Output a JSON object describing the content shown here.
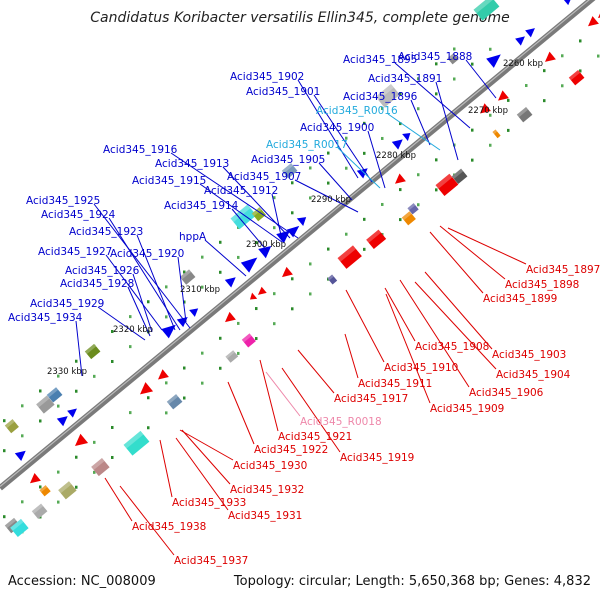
{
  "header": {
    "title": "Candidatus Koribacter versatilis Ellin345, complete genome"
  },
  "footer": {
    "accession": "Accession: NC_008009",
    "stats": "Topology: circular; Length: 5,650,368 bp; Genes: 4,832"
  },
  "colors": {
    "forward_label": "#0000cc",
    "reverse_label": "#dd0000",
    "forward_rna_label": "#22aadd",
    "reverse_rna_label": "#ee88aa",
    "backbone": "#888888",
    "forward_gene": "#0000ee",
    "reverse_gene": "#ee0000"
  },
  "ticks": [
    {
      "label": "2260 kbp"
    },
    {
      "label": "2270 kbp"
    },
    {
      "label": "2280 kbp"
    },
    {
      "label": "2290 kbp"
    },
    {
      "label": "2300 kbp"
    },
    {
      "label": "2310 kbp"
    },
    {
      "label": "2320 kbp"
    },
    {
      "label": "2330 kbp"
    }
  ],
  "forward_labels": [
    {
      "name": "Acid345_1888",
      "kind": "gene"
    },
    {
      "name": "Acid345_1895",
      "kind": "gene"
    },
    {
      "name": "Acid345_1891",
      "kind": "gene"
    },
    {
      "name": "Acid345_1902",
      "kind": "gene"
    },
    {
      "name": "Acid345_1901",
      "kind": "gene"
    },
    {
      "name": "Acid345_1896",
      "kind": "gene"
    },
    {
      "name": "Acid345_R0016",
      "kind": "rna"
    },
    {
      "name": "Acid345_1900",
      "kind": "gene"
    },
    {
      "name": "Acid345_R0017",
      "kind": "rna"
    },
    {
      "name": "Acid345_1916",
      "kind": "gene"
    },
    {
      "name": "Acid345_1905",
      "kind": "gene"
    },
    {
      "name": "Acid345_1913",
      "kind": "gene"
    },
    {
      "name": "Acid345_1907",
      "kind": "gene"
    },
    {
      "name": "Acid345_1915",
      "kind": "gene"
    },
    {
      "name": "Acid345_1912",
      "kind": "gene"
    },
    {
      "name": "Acid345_1925",
      "kind": "gene"
    },
    {
      "name": "Acid345_1914",
      "kind": "gene"
    },
    {
      "name": "Acid345_1924",
      "kind": "gene"
    },
    {
      "name": "Acid345_1923",
      "kind": "gene"
    },
    {
      "name": "hppA",
      "kind": "gene"
    },
    {
      "name": "Acid345_1927",
      "kind": "gene"
    },
    {
      "name": "Acid345_1920",
      "kind": "gene"
    },
    {
      "name": "Acid345_1926",
      "kind": "gene"
    },
    {
      "name": "Acid345_1928",
      "kind": "gene"
    },
    {
      "name": "Acid345_1929",
      "kind": "gene"
    },
    {
      "name": "Acid345_1934",
      "kind": "gene"
    }
  ],
  "reverse_labels": [
    {
      "name": "Acid345_1897",
      "kind": "gene"
    },
    {
      "name": "Acid345_1898",
      "kind": "gene"
    },
    {
      "name": "Acid345_1899",
      "kind": "gene"
    },
    {
      "name": "Acid345_1908",
      "kind": "gene"
    },
    {
      "name": "Acid345_1903",
      "kind": "gene"
    },
    {
      "name": "Acid345_1910",
      "kind": "gene"
    },
    {
      "name": "Acid345_1904",
      "kind": "gene"
    },
    {
      "name": "Acid345_1911",
      "kind": "gene"
    },
    {
      "name": "Acid345_1906",
      "kind": "gene"
    },
    {
      "name": "Acid345_1917",
      "kind": "gene"
    },
    {
      "name": "Acid345_1909",
      "kind": "gene"
    },
    {
      "name": "Acid345_R0018",
      "kind": "rna"
    },
    {
      "name": "Acid345_1921",
      "kind": "gene"
    },
    {
      "name": "Acid345_1922",
      "kind": "gene"
    },
    {
      "name": "Acid345_1919",
      "kind": "gene"
    },
    {
      "name": "Acid345_1930",
      "kind": "gene"
    },
    {
      "name": "Acid345_1932",
      "kind": "gene"
    },
    {
      "name": "Acid345_1933",
      "kind": "gene"
    },
    {
      "name": "Acid345_1931",
      "kind": "gene"
    },
    {
      "name": "Acid345_1938",
      "kind": "gene"
    },
    {
      "name": "Acid345_1937",
      "kind": "gene"
    }
  ]
}
